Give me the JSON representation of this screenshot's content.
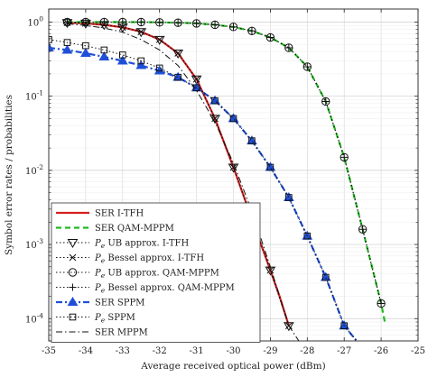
{
  "chart_data": {
    "type": "line",
    "xlabel": "Average received optical power (dBm)",
    "ylabel": "Symbol error rates / probabilities",
    "xlim": [
      -35,
      -25
    ],
    "ylim": [
      5e-05,
      1.5
    ],
    "yscale": "log",
    "grid": true,
    "legend_position": "bottom-left",
    "x_ticks": [
      "-35",
      "-34",
      "-33",
      "-32",
      "-31",
      "-30",
      "-29",
      "-28",
      "-27",
      "-26",
      "-25"
    ],
    "y_ticks": [
      {
        "base": "10",
        "exp": "0",
        "value": 1
      },
      {
        "base": "10",
        "exp": "-1",
        "value": 0.1
      },
      {
        "base": "10",
        "exp": "-2",
        "value": 0.01
      },
      {
        "base": "10",
        "exp": "-3",
        "value": 0.001
      },
      {
        "base": "10",
        "exp": "-4",
        "value": 0.0001
      }
    ],
    "series": [
      {
        "name": "SER I-TFH",
        "color": "#d62020",
        "dash": "solid",
        "width": 2.2,
        "marker": "none",
        "x": [
          -34.5,
          -34,
          -33.5,
          -33,
          -32.5,
          -32,
          -31.5,
          -31,
          -30.5,
          -30,
          -29.5,
          -29,
          -28.75,
          -28.5
        ],
        "y": [
          0.98,
          0.96,
          0.92,
          0.85,
          0.74,
          0.58,
          0.38,
          0.17,
          0.05,
          0.011,
          0.0022,
          0.00045,
          0.0002,
          8e-05
        ]
      },
      {
        "name": "SER QAM-MPPM",
        "color": "#22bb22",
        "dash": "6,4",
        "width": 2.2,
        "marker": "none",
        "x": [
          -34.5,
          -34,
          -33.5,
          -33,
          -32.5,
          -32,
          -31.5,
          -31,
          -30.5,
          -30,
          -29.5,
          -29,
          -28.5,
          -28,
          -27.5,
          -27,
          -26.5,
          -26,
          -25.9
        ],
        "y": [
          1,
          1,
          1,
          1,
          1,
          0.99,
          0.98,
          0.96,
          0.92,
          0.86,
          0.76,
          0.62,
          0.45,
          0.25,
          0.085,
          0.015,
          0.0016,
          0.00016,
          9e-05
        ]
      },
      {
        "name": "P_e UB approx. I-TFH",
        "label_prefix": "P",
        "label_sub": "e",
        "label_rest": " UB approx. I-TFH",
        "color": "#111111",
        "dash": "1.5,2.5",
        "width": 1,
        "marker": "triangle-down",
        "x": [
          -34.5,
          -34,
          -33.5,
          -33,
          -32.5,
          -32,
          -31.5,
          -31,
          -30.5,
          -30,
          -29.5,
          -29,
          -28.5
        ],
        "y": [
          0.98,
          0.96,
          0.92,
          0.85,
          0.74,
          0.58,
          0.38,
          0.17,
          0.05,
          0.011,
          0.0022,
          0.00045,
          8e-05
        ]
      },
      {
        "name": "P_e Bessel approx. I-TFH",
        "label_prefix": "P",
        "label_sub": "e",
        "label_rest": " Bessel approx. I-TFH",
        "color": "#111111",
        "dash": "1.5,2.5",
        "width": 1,
        "marker": "x",
        "x": [
          -34.5,
          -34,
          -33.5,
          -33,
          -32.5,
          -32,
          -31.5,
          -31,
          -30.5,
          -30,
          -29.5,
          -29,
          -28.5
        ],
        "y": [
          0.98,
          0.96,
          0.92,
          0.85,
          0.74,
          0.58,
          0.38,
          0.17,
          0.05,
          0.011,
          0.0022,
          0.00045,
          8e-05
        ]
      },
      {
        "name": "P_e UB approx. QAM-MPPM",
        "label_prefix": "P",
        "label_sub": "e",
        "label_rest": " UB approx. QAM-MPPM",
        "color": "#111111",
        "dash": "1.5,2.5",
        "width": 1,
        "marker": "circle",
        "x": [
          -34.5,
          -34,
          -33.5,
          -33,
          -32.5,
          -32,
          -31.5,
          -31,
          -30.5,
          -30,
          -29.5,
          -29,
          -28.5,
          -28,
          -27.5,
          -27,
          -26.5,
          -26
        ],
        "y": [
          1,
          1,
          1,
          1,
          1,
          0.99,
          0.98,
          0.96,
          0.92,
          0.86,
          0.76,
          0.62,
          0.45,
          0.25,
          0.085,
          0.015,
          0.0016,
          0.00016
        ]
      },
      {
        "name": "P_e Bessel approx. QAM-MPPM",
        "label_prefix": "P",
        "label_sub": "e",
        "label_rest": " Bessel approx. QAM-MPPM",
        "color": "#111111",
        "dash": "1.5,2.5",
        "width": 1,
        "marker": "plus",
        "x": [
          -34.5,
          -34,
          -33.5,
          -33,
          -32.5,
          -32,
          -31.5,
          -31,
          -30.5,
          -30,
          -29.5,
          -29,
          -28.5,
          -28,
          -27.5,
          -27,
          -26.5,
          -26
        ],
        "y": [
          1,
          1,
          1,
          1,
          1,
          0.99,
          0.98,
          0.96,
          0.92,
          0.86,
          0.76,
          0.62,
          0.45,
          0.25,
          0.085,
          0.015,
          0.0016,
          0.00016
        ]
      },
      {
        "name": "SER SPPM",
        "color": "#1f4fd8",
        "dash": "7,3,2,3",
        "width": 2.2,
        "marker": "triangle-up",
        "x": [
          -35,
          -34.5,
          -34,
          -33.5,
          -33,
          -32.5,
          -32,
          -31.5,
          -31,
          -30.5,
          -30,
          -29.5,
          -29,
          -28.5,
          -28,
          -27.5,
          -27,
          -26.5
        ],
        "y": [
          0.45,
          0.42,
          0.38,
          0.34,
          0.3,
          0.26,
          0.22,
          0.18,
          0.13,
          0.087,
          0.05,
          0.025,
          0.011,
          0.0043,
          0.0013,
          0.00036,
          8e-05,
          4e-05
        ]
      },
      {
        "name": "P_e SPPM",
        "label_prefix": "P",
        "label_sub": "e",
        "label_rest": " SPPM",
        "color": "#111111",
        "dash": "1.5,2.5",
        "width": 1,
        "marker": "square",
        "x": [
          -35,
          -34.5,
          -34,
          -33.5,
          -33,
          -32.5,
          -32,
          -31.5,
          -31,
          -30.5,
          -30,
          -29.5,
          -29,
          -28.5,
          -28,
          -27.5,
          -27,
          -26.5
        ],
        "y": [
          0.58,
          0.53,
          0.48,
          0.42,
          0.36,
          0.3,
          0.24,
          0.18,
          0.13,
          0.087,
          0.05,
          0.025,
          0.011,
          0.0043,
          0.0013,
          0.00036,
          8e-05,
          4e-05
        ]
      },
      {
        "name": "SER MPPM",
        "color": "#111111",
        "dash": "7,3,1.5,3",
        "width": 1,
        "marker": "none",
        "x": [
          -34.5,
          -34,
          -33.5,
          -33,
          -32.5,
          -32,
          -31.5,
          -31,
          -30.5,
          -30,
          -29.5,
          -29,
          -28.5,
          -28.1
        ],
        "y": [
          0.95,
          0.9,
          0.83,
          0.73,
          0.58,
          0.42,
          0.26,
          0.12,
          0.045,
          0.0125,
          0.0028,
          0.0005,
          8e-05,
          4e-05
        ]
      }
    ]
  }
}
